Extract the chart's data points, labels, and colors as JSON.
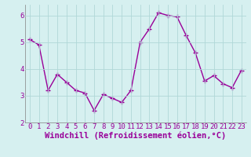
{
  "x": [
    0,
    1,
    2,
    3,
    4,
    5,
    6,
    7,
    8,
    9,
    10,
    11,
    12,
    13,
    14,
    15,
    16,
    17,
    18,
    19,
    20,
    21,
    22,
    23
  ],
  "y": [
    5.1,
    4.9,
    3.2,
    3.8,
    3.5,
    3.2,
    3.1,
    2.45,
    3.05,
    2.9,
    2.75,
    3.2,
    5.0,
    5.5,
    6.1,
    6.0,
    5.95,
    5.25,
    4.6,
    3.55,
    3.75,
    3.45,
    3.3,
    3.95
  ],
  "line_color": "#990099",
  "marker": "D",
  "marker_size": 2.2,
  "bg_color": "#d6f0f0",
  "grid_color": "#b0d8d8",
  "xlabel": "Windchill (Refroidissement éolien,°C)",
  "xlabel_color": "#990099",
  "tick_color": "#990099",
  "spine_color": "#808080",
  "ylim": [
    2.0,
    6.4
  ],
  "xlim": [
    -0.5,
    23.5
  ],
  "yticks": [
    2,
    3,
    4,
    5,
    6
  ],
  "xticks": [
    0,
    1,
    2,
    3,
    4,
    5,
    6,
    7,
    8,
    9,
    10,
    11,
    12,
    13,
    14,
    15,
    16,
    17,
    18,
    19,
    20,
    21,
    22,
    23
  ],
  "tick_fontsize": 6.5,
  "xlabel_fontsize": 7.5,
  "line_width": 1.0
}
